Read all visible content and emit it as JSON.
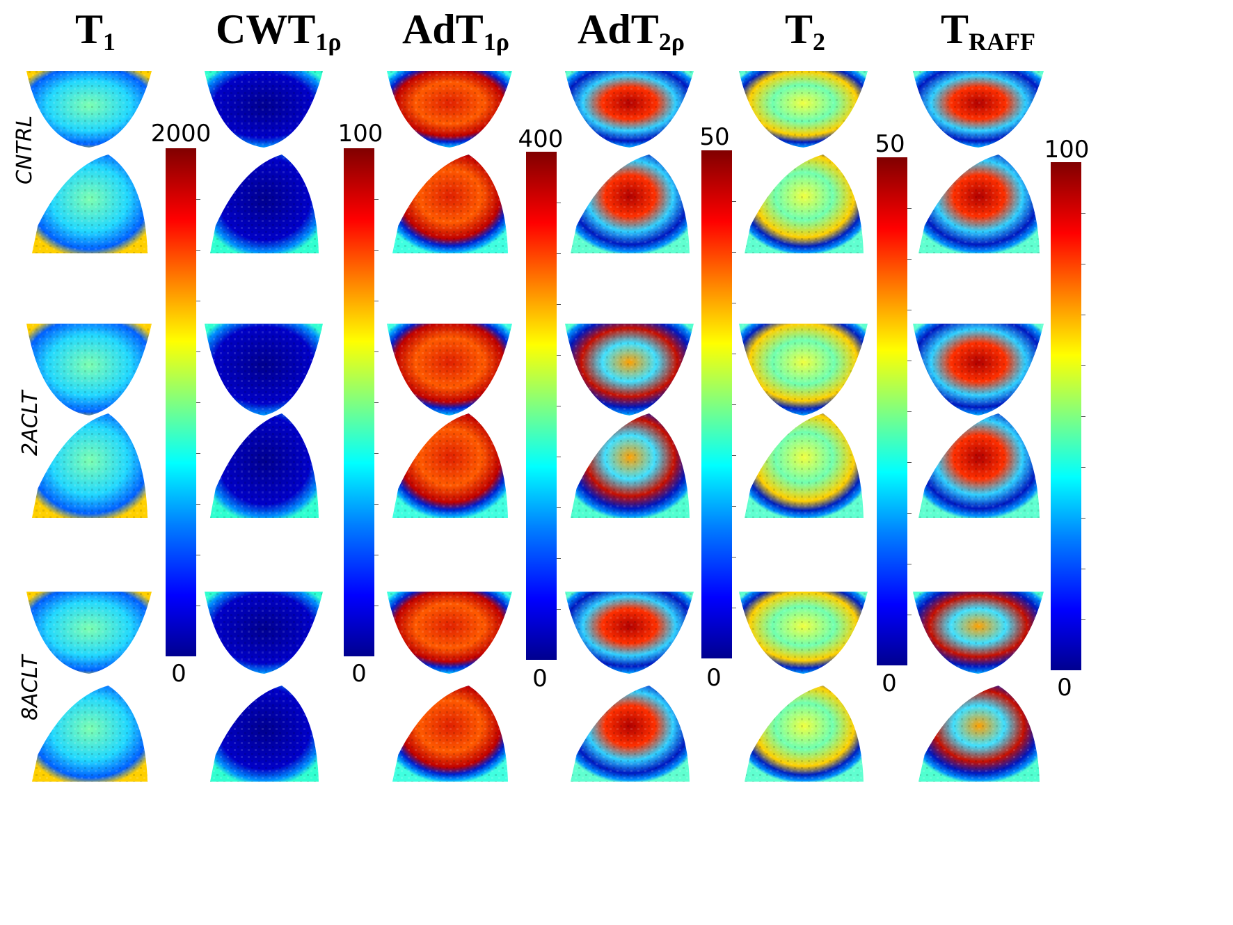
{
  "figure": {
    "columns": [
      {
        "id": "t1",
        "base": "T",
        "sub": "1",
        "cbar_max": "2000",
        "cbar_min": "0"
      },
      {
        "id": "cwt1rho",
        "base": "CWT",
        "sub": "1ρ",
        "cbar_max": "100",
        "cbar_min": "0"
      },
      {
        "id": "adt1rho",
        "base": "AdT",
        "sub": "1ρ",
        "cbar_max": "400",
        "cbar_min": "0"
      },
      {
        "id": "adt2rho",
        "base": "AdT",
        "sub": "2ρ",
        "cbar_max": "50",
        "cbar_min": "0"
      },
      {
        "id": "t2",
        "base": "T",
        "sub": "2",
        "cbar_max": "50",
        "cbar_min": "0"
      },
      {
        "id": "traff",
        "base": "T",
        "sub": "RAFF",
        "cbar_max": "100",
        "cbar_min": "0"
      }
    ],
    "rows": [
      {
        "id": "cntrl",
        "label": "CNTRL"
      },
      {
        "id": "2aclt",
        "label": "2ACLT"
      },
      {
        "id": "8aclt",
        "label": "8ACLT"
      }
    ],
    "colormap": [
      "#00008f",
      "#0000ff",
      "#0080ff",
      "#00ffff",
      "#80ff80",
      "#ffff00",
      "#ff8000",
      "#ff0000",
      "#800000"
    ]
  }
}
